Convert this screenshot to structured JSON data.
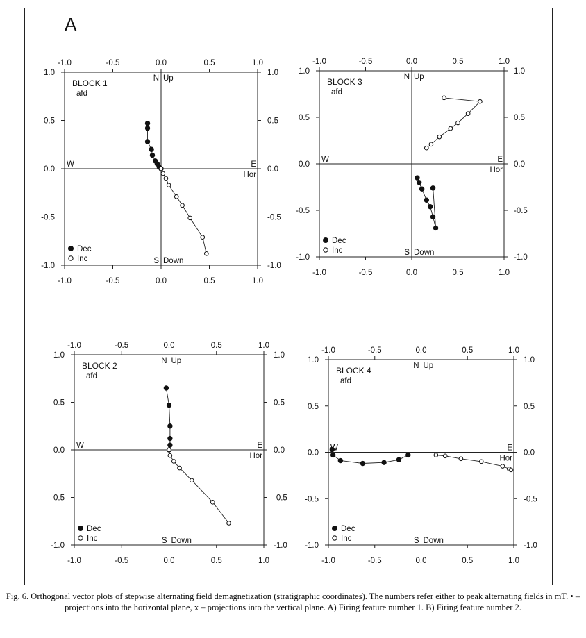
{
  "panel_label": "A",
  "caption": "Fig. 6. Orthogonal vector plots of stepwise alternating field demagnetization (stratigraphic coordinates). The numbers refer either to peak alternating fields in mT. • – projections into the horizontal plane, x – projections into the vertical plane. A) Firing feature number 1. B) Firing feature number 2.",
  "chart_data": [
    {
      "type": "scatter",
      "title": "BLOCK 1",
      "subtitle": "afd",
      "xlim": [
        -1.0,
        1.0
      ],
      "ylim": [
        -1.0,
        1.0
      ],
      "xticks": [
        "-1.0",
        "-0.5",
        "0.0",
        "0.5",
        "1.0"
      ],
      "yticks": [
        "1.0",
        "0.5",
        "0.0",
        "-0.5",
        "-1.0"
      ],
      "axis_labels": {
        "n": "N",
        "up": "Up",
        "w": "W",
        "e": "E",
        "hor": "Hor",
        "s": "S",
        "down": "Down"
      },
      "legend": {
        "dec": "Dec",
        "inc": "Inc",
        "position": "bottom-left"
      },
      "series": [
        {
          "name": "Dec",
          "marker": "filled",
          "x": [
            -0.14,
            -0.14,
            -0.14,
            -0.1,
            -0.09,
            -0.06,
            -0.04,
            -0.02,
            0.0
          ],
          "y": [
            0.47,
            0.42,
            0.28,
            0.2,
            0.14,
            0.08,
            0.05,
            0.02,
            0.0
          ]
        },
        {
          "name": "Inc",
          "marker": "open",
          "x": [
            0.0,
            0.02,
            0.05,
            0.08,
            0.16,
            0.22,
            0.3,
            0.43,
            0.47
          ],
          "y": [
            0.0,
            -0.05,
            -0.1,
            -0.17,
            -0.29,
            -0.38,
            -0.51,
            -0.71,
            -0.88
          ]
        }
      ]
    },
    {
      "type": "scatter",
      "title": "BLOCK 3",
      "subtitle": "afd",
      "xlim": [
        -1.0,
        1.0
      ],
      "ylim": [
        -1.0,
        1.0
      ],
      "xticks": [
        "-1.0",
        "-0.5",
        "0.0",
        "0.5",
        "1.0"
      ],
      "yticks": [
        "1.0",
        "0.5",
        "0.0",
        "-0.5",
        "-1.0"
      ],
      "axis_labels": {
        "n": "N",
        "up": "Up",
        "w": "W",
        "e": "E",
        "hor": "Hor",
        "s": "S",
        "down": "Down"
      },
      "legend": {
        "dec": "Dec",
        "inc": "Inc",
        "position": "bottom-left"
      },
      "series": [
        {
          "name": "Dec",
          "marker": "filled",
          "x": [
            0.23,
            0.26,
            0.23,
            0.2,
            0.16,
            0.11,
            0.08,
            0.06
          ],
          "y": [
            -0.26,
            -0.69,
            -0.57,
            -0.46,
            -0.39,
            -0.27,
            -0.2,
            -0.15
          ]
        },
        {
          "name": "Inc",
          "marker": "open",
          "x": [
            0.35,
            0.74,
            0.61,
            0.5,
            0.42,
            0.3,
            0.21,
            0.16
          ],
          "y": [
            0.71,
            0.67,
            0.54,
            0.44,
            0.38,
            0.29,
            0.21,
            0.17
          ]
        }
      ]
    },
    {
      "type": "scatter",
      "title": "BLOCK 2",
      "subtitle": "afd",
      "xlim": [
        -1.0,
        1.0
      ],
      "ylim": [
        -1.0,
        1.0
      ],
      "xticks": [
        "-1.0",
        "-0.5",
        "0.0",
        "0.5",
        "1.0"
      ],
      "yticks": [
        "1.0",
        "0.5",
        "0.0",
        "-0.5",
        "-1.0"
      ],
      "axis_labels": {
        "n": "N",
        "up": "Up",
        "w": "W",
        "e": "E",
        "hor": "Hor",
        "s": "S",
        "down": "Down"
      },
      "legend": {
        "dec": "Dec",
        "inc": "Inc",
        "position": "bottom-left"
      },
      "series": [
        {
          "name": "Dec",
          "marker": "filled",
          "x": [
            -0.03,
            0.0,
            0.01,
            0.01,
            0.01,
            0.0
          ],
          "y": [
            0.65,
            0.47,
            0.25,
            0.12,
            0.05,
            0.0
          ]
        },
        {
          "name": "Inc",
          "marker": "open",
          "x": [
            0.0,
            0.01,
            0.05,
            0.11,
            0.24,
            0.46,
            0.63
          ],
          "y": [
            0.0,
            -0.06,
            -0.12,
            -0.19,
            -0.32,
            -0.55,
            -0.77
          ]
        }
      ]
    },
    {
      "type": "scatter",
      "title": "BLOCK 4",
      "subtitle": "afd",
      "xlim": [
        -1.0,
        1.0
      ],
      "ylim": [
        -1.0,
        1.0
      ],
      "xticks": [
        "-1.0",
        "-0.5",
        "0.0",
        "0.5",
        "1.0"
      ],
      "yticks": [
        "1.0",
        "0.5",
        "0.0",
        "-0.5",
        "-1.0"
      ],
      "axis_labels": {
        "n": "N",
        "up": "Up",
        "w": "W",
        "e": "E",
        "hor": "Hor",
        "s": "S",
        "down": "Down"
      },
      "legend": {
        "dec": "Dec",
        "inc": "Inc",
        "position": "bottom-left"
      },
      "series": [
        {
          "name": "Dec",
          "marker": "filled",
          "x": [
            -0.96,
            -0.95,
            -0.87,
            -0.63,
            -0.4,
            -0.24,
            -0.14
          ],
          "y": [
            0.03,
            -0.03,
            -0.09,
            -0.12,
            -0.11,
            -0.08,
            -0.03
          ]
        },
        {
          "name": "Inc",
          "marker": "open",
          "x": [
            0.16,
            0.26,
            0.43,
            0.65,
            0.88,
            0.95,
            0.97
          ],
          "y": [
            -0.03,
            -0.04,
            -0.07,
            -0.1,
            -0.15,
            -0.18,
            -0.19
          ]
        }
      ]
    }
  ]
}
